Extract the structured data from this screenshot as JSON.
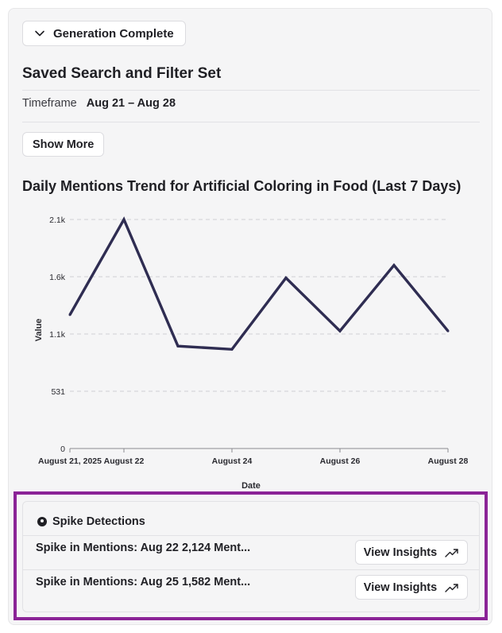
{
  "status": {
    "label": "Generation Complete",
    "icon": "chevron-down-icon"
  },
  "saved_search": {
    "title": "Saved Search and Filter Set",
    "timeframe_label": "Timeframe",
    "timeframe_value": "Aug 21 – Aug 28",
    "show_more_label": "Show More"
  },
  "chart_title": "Daily Mentions Trend for Artificial Coloring in Food (Last 7 Days)",
  "chart_data": {
    "type": "line",
    "x": [
      "2025-08-21",
      "2025-08-22",
      "2025-08-23",
      "2025-08-24",
      "2025-08-25",
      "2025-08-26",
      "2025-08-27",
      "2025-08-28"
    ],
    "values": [
      1240,
      2124,
      950,
      920,
      1582,
      1090,
      1700,
      1090
    ],
    "xlabel": "Date",
    "ylabel": "Value",
    "x_ticks": [
      {
        "x": "2025-08-21",
        "label": "August 21, 2025"
      },
      {
        "x": "2025-08-22",
        "label": "August 22"
      },
      {
        "x": "2025-08-24",
        "label": "August 24"
      },
      {
        "x": "2025-08-26",
        "label": "August 26"
      },
      {
        "x": "2025-08-28",
        "label": "August 28"
      }
    ],
    "y_ticks": [
      {
        "value": 0,
        "label": "0"
      },
      {
        "value": 531,
        "label": "531"
      },
      {
        "value": 1062,
        "label": "1.1k"
      },
      {
        "value": 1593,
        "label": "1.6k"
      },
      {
        "value": 2124,
        "label": "2.1k"
      }
    ],
    "ylim": [
      0,
      2124
    ],
    "grid": true,
    "line_color": "#2f2d52"
  },
  "spikes": {
    "title": "Spike Detections",
    "icon": "location-pin-icon",
    "items": [
      {
        "text": "Spike in Mentions: Aug 22 2,124 Ment...",
        "button": "View Insights"
      },
      {
        "text": "Spike in Mentions: Aug 25 1,582 Ment...",
        "button": "View Insights"
      }
    ]
  },
  "colors": {
    "highlight_border": "#8b2397",
    "card_bg": "#f5f5f6"
  }
}
